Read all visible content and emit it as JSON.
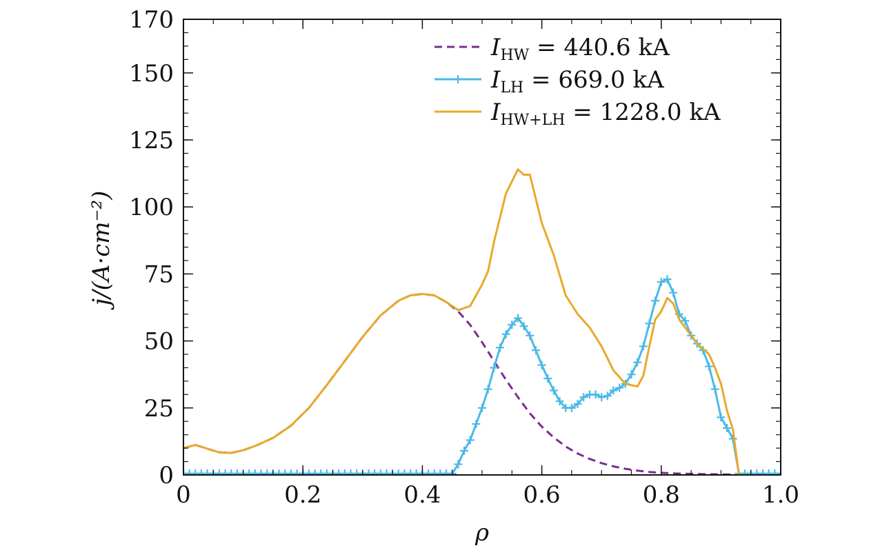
{
  "chart_data": {
    "type": "line",
    "title": "",
    "xlabel": "ρ",
    "ylabel": "j/(A·cm⁻²)",
    "xlim": [
      0,
      1.0
    ],
    "ylim": [
      0,
      170
    ],
    "grid": false,
    "legend_position": "top-right",
    "xticks": [
      0,
      0.2,
      0.4,
      0.6,
      0.8,
      1.0
    ],
    "xtick_labels": [
      "0",
      "0.2",
      "0.4",
      "0.6",
      "0.8",
      "1.0"
    ],
    "yticks": [
      0,
      25,
      50,
      75,
      100,
      125,
      150,
      170
    ],
    "ytick_labels": [
      "0",
      "25",
      "50",
      "75",
      "100",
      "125",
      "150",
      "170"
    ],
    "series": [
      {
        "name": "HW",
        "label": "I_HW = 440.6 kA",
        "label_main": "I",
        "label_sub": "HW",
        "label_rest": " = 440.6 kA",
        "color": "#7b2d8e",
        "style": "dashed",
        "marker": "none",
        "x": [
          0.0,
          0.02,
          0.04,
          0.06,
          0.08,
          0.1,
          0.12,
          0.15,
          0.18,
          0.21,
          0.24,
          0.27,
          0.3,
          0.33,
          0.36,
          0.38,
          0.4,
          0.42,
          0.44,
          0.46,
          0.48,
          0.5,
          0.52,
          0.54,
          0.56,
          0.58,
          0.6,
          0.62,
          0.64,
          0.66,
          0.68,
          0.7,
          0.72,
          0.74,
          0.76,
          0.78,
          0.8,
          0.82,
          0.84,
          0.86,
          0.88,
          0.9,
          0.92,
          0.94,
          0.96,
          0.98,
          1.0
        ],
        "y": [
          10.0,
          11.2,
          9.8,
          8.4,
          8.2,
          9.2,
          10.8,
          13.8,
          18.4,
          25.0,
          33.5,
          42.5,
          51.5,
          59.5,
          65.0,
          67.0,
          67.5,
          67.0,
          64.5,
          61.0,
          56.0,
          49.5,
          42.5,
          35.5,
          29.0,
          23.0,
          18.0,
          14.0,
          10.6,
          8.0,
          6.0,
          4.4,
          3.2,
          2.3,
          1.6,
          1.1,
          0.8,
          0.6,
          0.45,
          0.35,
          0.25,
          0.2,
          0.15,
          0.1,
          0.05,
          0.02,
          0.0
        ]
      },
      {
        "name": "LH",
        "label": "I_LH = 669.0 kA",
        "label_main": "I",
        "label_sub": "LH",
        "label_rest": " = 669.0 kA",
        "color": "#4cb9e6",
        "style": "solid",
        "marker": "plus",
        "x": [
          0.0,
          0.01,
          0.02,
          0.03,
          0.04,
          0.05,
          0.06,
          0.07,
          0.08,
          0.09,
          0.1,
          0.11,
          0.12,
          0.13,
          0.14,
          0.15,
          0.16,
          0.17,
          0.18,
          0.19,
          0.2,
          0.21,
          0.22,
          0.23,
          0.24,
          0.25,
          0.26,
          0.27,
          0.28,
          0.29,
          0.3,
          0.31,
          0.32,
          0.33,
          0.34,
          0.35,
          0.36,
          0.37,
          0.38,
          0.39,
          0.4,
          0.41,
          0.42,
          0.43,
          0.44,
          0.45,
          0.46,
          0.47,
          0.48,
          0.49,
          0.5,
          0.51,
          0.52,
          0.53,
          0.54,
          0.55,
          0.56,
          0.57,
          0.58,
          0.59,
          0.6,
          0.61,
          0.62,
          0.63,
          0.64,
          0.65,
          0.66,
          0.67,
          0.68,
          0.69,
          0.7,
          0.71,
          0.72,
          0.73,
          0.74,
          0.75,
          0.76,
          0.77,
          0.78,
          0.79,
          0.8,
          0.81,
          0.82,
          0.83,
          0.84,
          0.85,
          0.86,
          0.87,
          0.88,
          0.89,
          0.9,
          0.91,
          0.92,
          0.93,
          0.94,
          0.95,
          0.96,
          0.97,
          0.98,
          0.99,
          1.0
        ],
        "y": [
          0.5,
          0.5,
          0.5,
          0.5,
          0.5,
          0.5,
          0.5,
          0.5,
          0.5,
          0.5,
          0.5,
          0.5,
          0.5,
          0.5,
          0.5,
          0.5,
          0.5,
          0.5,
          0.5,
          0.5,
          0.5,
          0.5,
          0.5,
          0.5,
          0.5,
          0.5,
          0.5,
          0.5,
          0.5,
          0.5,
          0.5,
          0.5,
          0.5,
          0.5,
          0.5,
          0.5,
          0.5,
          0.5,
          0.5,
          0.5,
          0.5,
          0.5,
          0.5,
          0.5,
          0.5,
          0.5,
          4.0,
          9.0,
          13.0,
          19.0,
          25.0,
          32.0,
          40.0,
          47.5,
          52.5,
          56.0,
          58.5,
          55.5,
          52.0,
          46.5,
          41.0,
          36.0,
          31.5,
          27.5,
          25.0,
          25.0,
          26.5,
          29.0,
          30.0,
          30.0,
          29.0,
          29.5,
          31.5,
          32.5,
          34.0,
          37.5,
          42.0,
          48.0,
          56.5,
          65.0,
          72.0,
          73.0,
          68.0,
          60.0,
          57.5,
          52.0,
          49.0,
          46.5,
          40.5,
          32.0,
          21.5,
          17.5,
          13.5,
          0.5,
          0.5,
          0.5,
          0.5,
          0.5,
          0.5,
          0.5,
          0.5
        ]
      },
      {
        "name": "HW+LH",
        "label": "I_HW+LH = 1228.0 kA",
        "label_main": "I",
        "label_sub": "HW+LH",
        "label_rest": " = 1228.0 kA",
        "color": "#e8a92a",
        "style": "solid",
        "marker": "none",
        "x": [
          0.0,
          0.02,
          0.04,
          0.06,
          0.08,
          0.1,
          0.12,
          0.15,
          0.18,
          0.21,
          0.24,
          0.27,
          0.3,
          0.33,
          0.36,
          0.38,
          0.4,
          0.42,
          0.44,
          0.46,
          0.48,
          0.5,
          0.51,
          0.52,
          0.54,
          0.56,
          0.57,
          0.58,
          0.6,
          0.62,
          0.64,
          0.66,
          0.68,
          0.7,
          0.72,
          0.74,
          0.76,
          0.77,
          0.78,
          0.79,
          0.8,
          0.81,
          0.82,
          0.83,
          0.84,
          0.86,
          0.88,
          0.89,
          0.9,
          0.91,
          0.92,
          0.93
        ],
        "y": [
          10.0,
          11.2,
          9.8,
          8.4,
          8.2,
          9.2,
          10.8,
          13.8,
          18.4,
          25.0,
          33.5,
          42.5,
          51.5,
          59.5,
          65.0,
          67.0,
          67.5,
          67.0,
          64.5,
          61.5,
          63.0,
          71.0,
          76.0,
          87.0,
          105.0,
          114.0,
          112.0,
          112.0,
          94.0,
          82.0,
          67.0,
          60.0,
          55.0,
          48.0,
          39.0,
          34.0,
          33.0,
          37.0,
          48.0,
          58.0,
          61.0,
          66.0,
          64.0,
          58.0,
          55.0,
          49.0,
          45.0,
          40.0,
          34.0,
          24.0,
          17.0,
          0.0
        ]
      }
    ]
  }
}
